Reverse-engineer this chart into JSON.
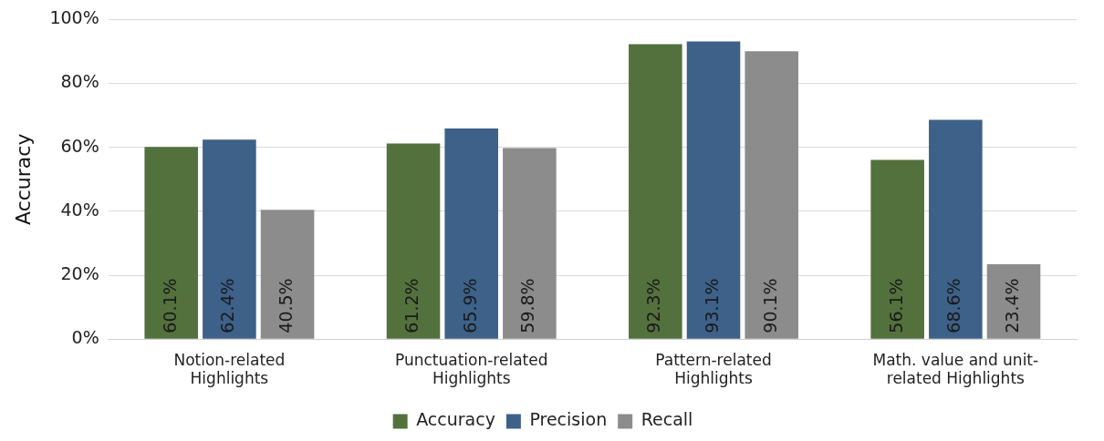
{
  "chart_data": {
    "type": "bar",
    "ylabel": "Accuracy",
    "categories": [
      "Notion-related Highlights",
      "Punctuation-related Highlights",
      "Pattern-related Highlights",
      "Math. value and unit-related Highlights"
    ],
    "series": [
      {
        "name": "Accuracy",
        "color": "#53713d",
        "values": [
          60.1,
          61.2,
          92.3,
          56.1
        ],
        "value_labels": [
          "60.1%",
          "61.2%",
          "92.3%",
          "56.1%"
        ]
      },
      {
        "name": "Precision",
        "color": "#3d6189",
        "values": [
          62.4,
          65.9,
          93.1,
          68.6
        ],
        "value_labels": [
          "62.4%",
          "65.9%",
          "93.1%",
          "68.6%"
        ]
      },
      {
        "name": "Recall",
        "color": "#8c8c8c",
        "values": [
          40.5,
          59.8,
          90.1,
          23.4
        ],
        "value_labels": [
          "40.5%",
          "59.8%",
          "90.1%",
          "23.4%"
        ]
      }
    ],
    "ylim": [
      0,
      100
    ],
    "yticks": [
      {
        "value": 0,
        "label": "0%"
      },
      {
        "value": 20,
        "label": "20%"
      },
      {
        "value": 40,
        "label": "40%"
      },
      {
        "value": 60,
        "label": "60%"
      },
      {
        "value": 80,
        "label": "80%"
      },
      {
        "value": 100,
        "label": "100%"
      }
    ],
    "grid": "y",
    "legend": "bottom"
  }
}
